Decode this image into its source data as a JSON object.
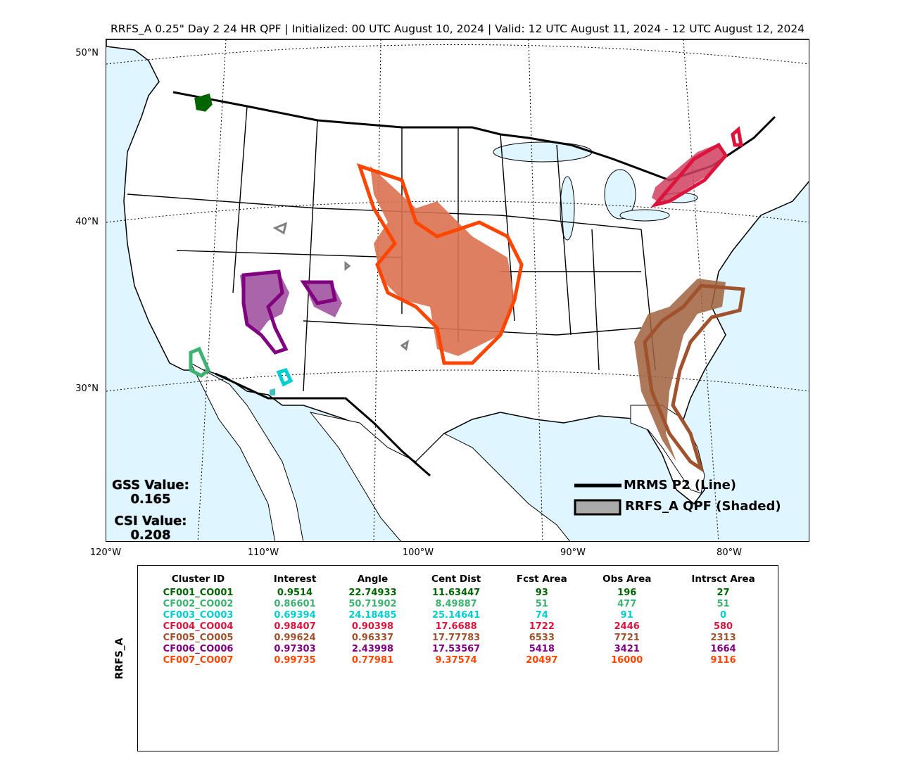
{
  "title": "RRFS_A 0.25\" Day 2 24 HR QPF | Initialized: 00 UTC August 10, 2024 | Valid: 12 UTC August 11, 2024 - 12 UTC August 12, 2024",
  "map": {
    "lat_labels": [
      "50°N",
      "40°N",
      "30°N"
    ],
    "lon_labels": [
      "120°W",
      "110°W",
      "100°W",
      "90°W",
      "80°W"
    ],
    "ocean_color": "#dff5ff",
    "land_color": "#ffffff"
  },
  "stats": {
    "gss_label": "GSS Value:",
    "gss_value": "0.165",
    "csi_label": "CSI Value:",
    "csi_value": "0.208"
  },
  "legend": {
    "line_label": "MRMS P2 (Line)",
    "shaded_label": "RRFS_A QPF (Shaded)"
  },
  "table": {
    "y_label": "RRFS_A",
    "headers": [
      "Cluster ID",
      "Interest",
      "Angle",
      "Cent Dist",
      "Fcst Area",
      "Obs Area",
      "Intrsct Area"
    ],
    "rows": [
      {
        "color": "#006400",
        "cells": [
          "CF001_CO001",
          "0.9514",
          "22.74933",
          "11.63447",
          "93",
          "196",
          "27"
        ]
      },
      {
        "color": "#3cb371",
        "cells": [
          "CF002_CO002",
          "0.86601",
          "50.71902",
          "8.49887",
          "51",
          "477",
          "51"
        ]
      },
      {
        "color": "#00ced1",
        "cells": [
          "CF003_CO003",
          "0.69394",
          "24.18485",
          "25.14641",
          "74",
          "91",
          "0"
        ]
      },
      {
        "color": "#dc143c",
        "cells": [
          "CF004_CO004",
          "0.98407",
          "0.90398",
          "17.6688",
          "1722",
          "2446",
          "580"
        ]
      },
      {
        "color": "#a0522d",
        "cells": [
          "CF005_CO005",
          "0.99624",
          "0.96337",
          "17.77783",
          "6533",
          "7721",
          "2313"
        ]
      },
      {
        "color": "#800080",
        "cells": [
          "CF006_CO006",
          "0.97303",
          "2.43998",
          "17.53567",
          "5418",
          "3421",
          "1664"
        ]
      },
      {
        "color": "#ff4500",
        "cells": [
          "CF007_CO007",
          "0.99735",
          "0.77981",
          "9.37574",
          "20497",
          "16000",
          "9116"
        ]
      }
    ]
  }
}
